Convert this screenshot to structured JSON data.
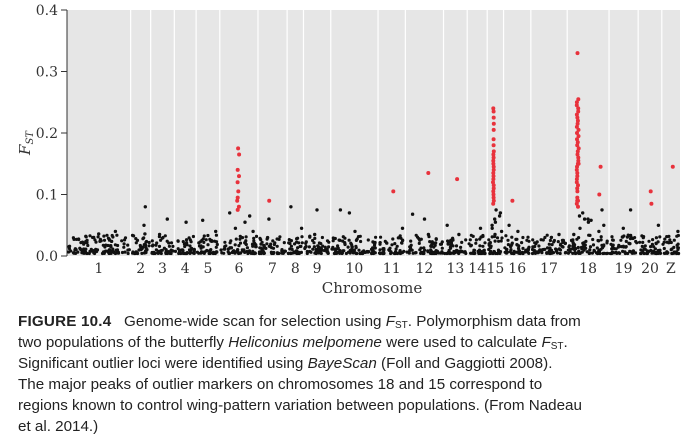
{
  "chart_data": {
    "type": "scatter",
    "ylabel": {
      "main": "F",
      "sub": "ST"
    },
    "xlabel": "Chromosome",
    "ylim": [
      0,
      0.4
    ],
    "y_ticks": [
      "0.0",
      "0.1",
      "0.2",
      "0.3",
      "0.4"
    ],
    "y_tick_values": [
      0,
      0.1,
      0.2,
      0.3,
      0.4
    ],
    "grid": true,
    "colors": {
      "background": "#e6e6e6",
      "gridline": "#ffffff",
      "marker": "#111111",
      "outlier": "#e8323c"
    },
    "chromosomes": [
      {
        "label": "1",
        "start": 0,
        "end": 1.75
      },
      {
        "label": "2",
        "start": 1.75,
        "end": 2.3
      },
      {
        "label": "3",
        "start": 2.3,
        "end": 2.95
      },
      {
        "label": "4",
        "start": 2.95,
        "end": 3.55
      },
      {
        "label": "5",
        "start": 3.55,
        "end": 4.2
      },
      {
        "label": "6",
        "start": 4.2,
        "end": 5.25
      },
      {
        "label": "7",
        "start": 5.25,
        "end": 6.05
      },
      {
        "label": "8",
        "start": 6.05,
        "end": 6.5
      },
      {
        "label": "9",
        "start": 6.5,
        "end": 7.25
      },
      {
        "label": "10",
        "start": 7.25,
        "end": 8.55
      },
      {
        "label": "11",
        "start": 8.55,
        "end": 9.3
      },
      {
        "label": "12",
        "start": 9.3,
        "end": 10.35
      },
      {
        "label": "13",
        "start": 10.35,
        "end": 11.0
      },
      {
        "label": "14",
        "start": 11.0,
        "end": 11.55
      },
      {
        "label": "15",
        "start": 11.55,
        "end": 12.0
      },
      {
        "label": "16",
        "start": 12.0,
        "end": 12.75
      },
      {
        "label": "17",
        "start": 12.75,
        "end": 13.75
      },
      {
        "label": "18",
        "start": 13.75,
        "end": 14.9
      },
      {
        "label": "19",
        "start": 14.9,
        "end": 15.7
      },
      {
        "label": "20",
        "start": 15.7,
        "end": 16.35
      },
      {
        "label": "Z",
        "start": 16.35,
        "end": 16.85
      }
    ],
    "background_points": {
      "count_per_chromosome": 70,
      "y_typical_range": [
        0.0,
        0.03
      ]
    },
    "scatter_points": [
      {
        "chrom": "1",
        "y": 0.036
      },
      {
        "chrom": "1",
        "y": 0.032
      },
      {
        "chrom": "1",
        "y": 0.04
      },
      {
        "chrom": "2",
        "y": 0.036
      },
      {
        "chrom": "2",
        "y": 0.05
      },
      {
        "chrom": "2",
        "y": 0.08
      },
      {
        "chrom": "3",
        "y": 0.06
      },
      {
        "chrom": "3",
        "y": 0.035
      },
      {
        "chrom": "4",
        "y": 0.055
      },
      {
        "chrom": "5",
        "y": 0.04
      },
      {
        "chrom": "5",
        "y": 0.058
      },
      {
        "chrom": "6",
        "y": 0.055
      },
      {
        "chrom": "6",
        "y": 0.045
      },
      {
        "chrom": "6",
        "y": 0.04
      },
      {
        "chrom": "6",
        "y": 0.07
      },
      {
        "chrom": "6",
        "y": 0.065
      },
      {
        "chrom": "7",
        "y": 0.06
      },
      {
        "chrom": "7",
        "y": 0.03
      },
      {
        "chrom": "8",
        "y": 0.08
      },
      {
        "chrom": "8",
        "y": 0.045
      },
      {
        "chrom": "9",
        "y": 0.075
      },
      {
        "chrom": "9",
        "y": 0.035
      },
      {
        "chrom": "10",
        "y": 0.075
      },
      {
        "chrom": "10",
        "y": 0.07
      },
      {
        "chrom": "10",
        "y": 0.04
      },
      {
        "chrom": "11",
        "y": 0.045
      },
      {
        "chrom": "12",
        "y": 0.068
      },
      {
        "chrom": "12",
        "y": 0.06
      },
      {
        "chrom": "12",
        "y": 0.035
      },
      {
        "chrom": "13",
        "y": 0.035
      },
      {
        "chrom": "13",
        "y": 0.05
      },
      {
        "chrom": "14",
        "y": 0.045
      },
      {
        "chrom": "15",
        "y": 0.075
      },
      {
        "chrom": "15",
        "y": 0.07
      },
      {
        "chrom": "15",
        "y": 0.065
      },
      {
        "chrom": "15",
        "y": 0.06
      },
      {
        "chrom": "15",
        "y": 0.055
      },
      {
        "chrom": "15",
        "y": 0.05
      },
      {
        "chrom": "15",
        "y": 0.045
      },
      {
        "chrom": "15",
        "y": 0.04
      },
      {
        "chrom": "15",
        "y": 0.035
      },
      {
        "chrom": "16",
        "y": 0.05
      },
      {
        "chrom": "16",
        "y": 0.04
      },
      {
        "chrom": "17",
        "y": 0.035
      },
      {
        "chrom": "18",
        "y": 0.075
      },
      {
        "chrom": "18",
        "y": 0.07
      },
      {
        "chrom": "18",
        "y": 0.065
      },
      {
        "chrom": "18",
        "y": 0.06
      },
      {
        "chrom": "18",
        "y": 0.055
      },
      {
        "chrom": "18",
        "y": 0.05
      },
      {
        "chrom": "18",
        "y": 0.045
      },
      {
        "chrom": "18",
        "y": 0.04
      },
      {
        "chrom": "18",
        "y": 0.035
      },
      {
        "chrom": "18",
        "y": 0.06
      },
      {
        "chrom": "18",
        "y": 0.058
      },
      {
        "chrom": "19",
        "y": 0.075
      },
      {
        "chrom": "19",
        "y": 0.045
      },
      {
        "chrom": "20",
        "y": 0.05
      },
      {
        "chrom": "Z",
        "y": 0.04
      }
    ],
    "outliers": [
      {
        "chrom": "6",
        "y": 0.175
      },
      {
        "chrom": "6",
        "y": 0.165
      },
      {
        "chrom": "6",
        "y": 0.14
      },
      {
        "chrom": "6",
        "y": 0.13
      },
      {
        "chrom": "6",
        "y": 0.12
      },
      {
        "chrom": "6",
        "y": 0.105
      },
      {
        "chrom": "6",
        "y": 0.09
      },
      {
        "chrom": "6",
        "y": 0.08
      },
      {
        "chrom": "6",
        "y": 0.075
      },
      {
        "chrom": "6",
        "y": 0.095
      },
      {
        "chrom": "7",
        "y": 0.09
      },
      {
        "chrom": "11",
        "y": 0.105
      },
      {
        "chrom": "12",
        "y": 0.135
      },
      {
        "chrom": "13",
        "y": 0.125
      },
      {
        "chrom": "15",
        "y": 0.24
      },
      {
        "chrom": "15",
        "y": 0.235
      },
      {
        "chrom": "15",
        "y": 0.225
      },
      {
        "chrom": "15",
        "y": 0.215
      },
      {
        "chrom": "15",
        "y": 0.205
      },
      {
        "chrom": "15",
        "y": 0.19
      },
      {
        "chrom": "15",
        "y": 0.18
      },
      {
        "chrom": "15",
        "y": 0.17
      },
      {
        "chrom": "15",
        "y": 0.165
      },
      {
        "chrom": "15",
        "y": 0.16
      },
      {
        "chrom": "15",
        "y": 0.155
      },
      {
        "chrom": "15",
        "y": 0.15
      },
      {
        "chrom": "15",
        "y": 0.145
      },
      {
        "chrom": "15",
        "y": 0.14
      },
      {
        "chrom": "15",
        "y": 0.135
      },
      {
        "chrom": "15",
        "y": 0.13
      },
      {
        "chrom": "15",
        "y": 0.125
      },
      {
        "chrom": "15",
        "y": 0.12
      },
      {
        "chrom": "15",
        "y": 0.115
      },
      {
        "chrom": "15",
        "y": 0.11
      },
      {
        "chrom": "15",
        "y": 0.105
      },
      {
        "chrom": "15",
        "y": 0.1
      },
      {
        "chrom": "15",
        "y": 0.095
      },
      {
        "chrom": "15",
        "y": 0.09
      },
      {
        "chrom": "15",
        "y": 0.085
      },
      {
        "chrom": "16",
        "y": 0.09
      },
      {
        "chrom": "18",
        "y": 0.33
      },
      {
        "chrom": "18",
        "y": 0.255
      },
      {
        "chrom": "18",
        "y": 0.25
      },
      {
        "chrom": "18",
        "y": 0.245
      },
      {
        "chrom": "18",
        "y": 0.24
      },
      {
        "chrom": "18",
        "y": 0.235
      },
      {
        "chrom": "18",
        "y": 0.23
      },
      {
        "chrom": "18",
        "y": 0.225
      },
      {
        "chrom": "18",
        "y": 0.22
      },
      {
        "chrom": "18",
        "y": 0.215
      },
      {
        "chrom": "18",
        "y": 0.21
      },
      {
        "chrom": "18",
        "y": 0.205
      },
      {
        "chrom": "18",
        "y": 0.2
      },
      {
        "chrom": "18",
        "y": 0.195
      },
      {
        "chrom": "18",
        "y": 0.19
      },
      {
        "chrom": "18",
        "y": 0.185
      },
      {
        "chrom": "18",
        "y": 0.18
      },
      {
        "chrom": "18",
        "y": 0.175
      },
      {
        "chrom": "18",
        "y": 0.17
      },
      {
        "chrom": "18",
        "y": 0.165
      },
      {
        "chrom": "18",
        "y": 0.16
      },
      {
        "chrom": "18",
        "y": 0.155
      },
      {
        "chrom": "18",
        "y": 0.15
      },
      {
        "chrom": "18",
        "y": 0.145
      },
      {
        "chrom": "18",
        "y": 0.14
      },
      {
        "chrom": "18",
        "y": 0.135
      },
      {
        "chrom": "18",
        "y": 0.13
      },
      {
        "chrom": "18",
        "y": 0.125
      },
      {
        "chrom": "18",
        "y": 0.12
      },
      {
        "chrom": "18",
        "y": 0.115
      },
      {
        "chrom": "18",
        "y": 0.11
      },
      {
        "chrom": "18",
        "y": 0.105
      },
      {
        "chrom": "18",
        "y": 0.1
      },
      {
        "chrom": "18",
        "y": 0.095
      },
      {
        "chrom": "18",
        "y": 0.09
      },
      {
        "chrom": "18",
        "y": 0.085
      },
      {
        "chrom": "18",
        "y": 0.08
      },
      {
        "chrom": "18",
        "y": 0.15
      },
      {
        "chrom": "18",
        "y": 0.145
      },
      {
        "chrom": "18",
        "y": 0.09
      },
      {
        "chrom": "20",
        "y": 0.105
      },
      {
        "chrom": "20",
        "y": 0.085
      },
      {
        "chrom": "Z",
        "y": 0.145
      }
    ]
  },
  "caption": {
    "label": "FIGURE 10.4",
    "line1_a": "Genome-wide scan for selection using ",
    "line1_fst_main": "F",
    "line1_fst_sub": "ST",
    "line1_b": ". Polymorphism data from",
    "line2_a": "two populations of the butterfly ",
    "line2_species": "Heliconius melpomene",
    "line2_b": " were used to calculate ",
    "line2_fst_main": "F",
    "line2_fst_sub": "ST",
    "line2_c": ".",
    "line3_a": "Significant outlier loci were identified using ",
    "line3_software": "BayeScan",
    "line3_b": " (Foll and Gaggiotti 2008).",
    "line4": "The major peaks of outlier markers on chromosomes 18 and 15 correspond to",
    "line5": "regions known to control wing-pattern variation between populations. (From Nadeau",
    "line6": "et al. 2014.)"
  }
}
